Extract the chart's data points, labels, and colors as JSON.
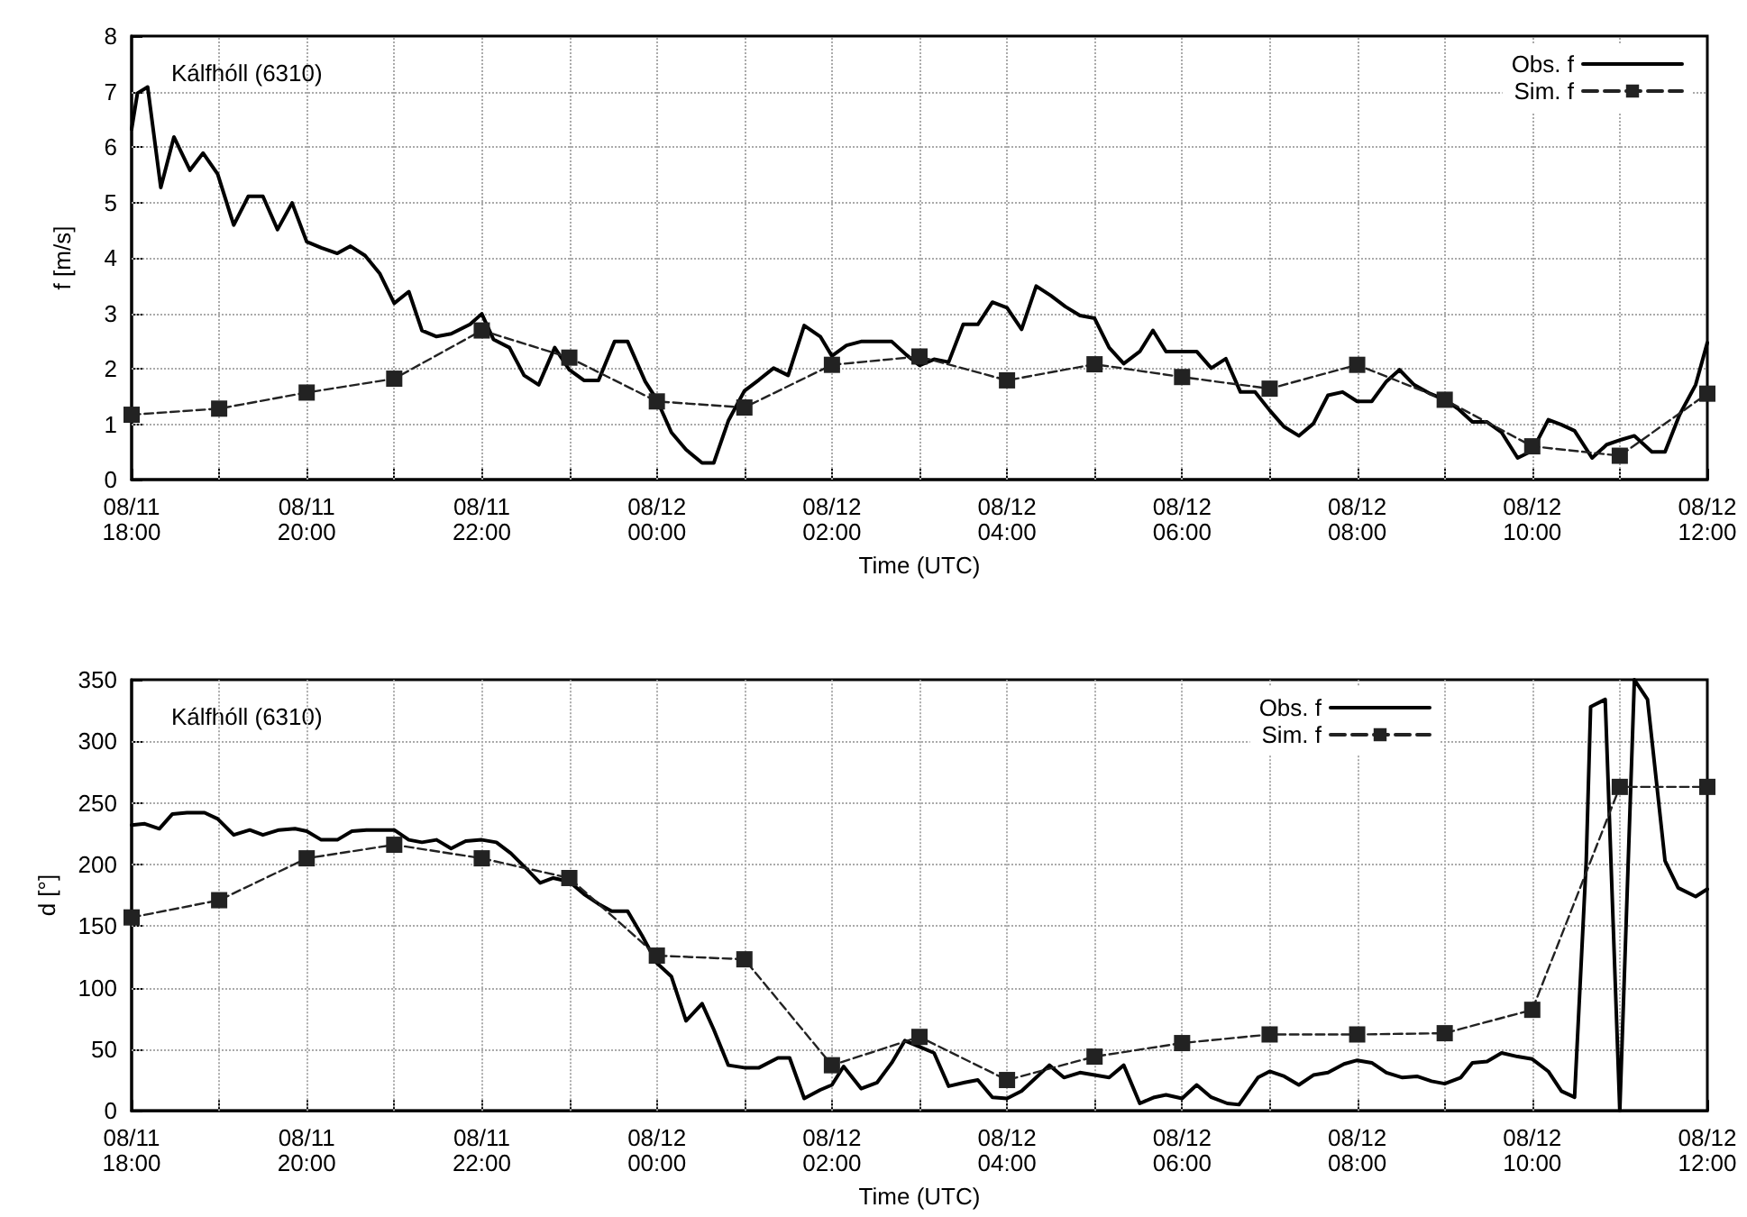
{
  "chart_data": [
    {
      "type": "line",
      "xlabel": "Time (UTC)",
      "ylabel": "f [m/s]",
      "annotations": [
        "Kálfhóll (6310)"
      ],
      "xlim": [
        "--08-11T18:00",
        "--08-12T12:00"
      ],
      "ylim": [
        0,
        8
      ],
      "xticks": [
        {
          "value": "--08-11T18:00",
          "label": "08/11\n18:00"
        },
        {
          "value": "--08-11T19:00",
          "label": null
        },
        {
          "value": "--08-11T20:00",
          "label": "08/11\n20:00"
        },
        {
          "value": "--08-11T21:00",
          "label": null
        },
        {
          "value": "--08-11T22:00",
          "label": "08/11\n22:00"
        },
        {
          "value": "--08-11T23:00",
          "label": null
        },
        {
          "value": "--08-12T00:00",
          "label": "08/12\n00:00"
        },
        {
          "value": "--08-12T01:00",
          "label": null
        },
        {
          "value": "--08-12T02:00",
          "label": "08/12\n02:00"
        },
        {
          "value": "--08-12T03:00",
          "label": null
        },
        {
          "value": "--08-12T04:00",
          "label": "08/12\n04:00"
        },
        {
          "value": "--08-12T05:00",
          "label": null
        },
        {
          "value": "--08-12T06:00",
          "label": "08/12\n06:00"
        },
        {
          "value": "--08-12T07:00",
          "label": null
        },
        {
          "value": "--08-12T08:00",
          "label": "08/12\n08:00"
        },
        {
          "value": "--08-12T09:00",
          "label": null
        },
        {
          "value": "--08-12T10:00",
          "label": "08/12\n10:00"
        },
        {
          "value": "--08-12T11:00",
          "label": null
        },
        {
          "value": "--08-12T12:00",
          "label": "08/12\n12:00"
        }
      ],
      "yticks": [
        0,
        1,
        2,
        3,
        4,
        5,
        6,
        7,
        8
      ],
      "grid": true,
      "legend": "top right",
      "series": [
        {
          "name": "Obs. f",
          "color": "#000000",
          "marker": "none",
          "line_style": "solid",
          "x": [
            "--08-11T18:00",
            "--08-11T18:04",
            "--08-11T18:11",
            "--08-11T18:20",
            "--08-11T18:29",
            "--08-11T18:40",
            "--08-11T18:49",
            "--08-11T18:59",
            "--08-11T19:10",
            "--08-11T19:20",
            "--08-11T19:30",
            "--08-11T19:40",
            "--08-11T19:50",
            "--08-11T20:00",
            "--08-11T20:10",
            "--08-11T20:21",
            "--08-11T20:30",
            "--08-11T20:40",
            "--08-11T20:50",
            "--08-11T21:00",
            "--08-11T21:10",
            "--08-11T21:19",
            "--08-11T21:29",
            "--08-11T21:39",
            "--08-11T21:52",
            "--08-11T22:00",
            "--08-11T22:08",
            "--08-11T22:19",
            "--08-11T22:29",
            "--08-11T22:39",
            "--08-11T22:50",
            "--08-11T23:00",
            "--08-11T23:10",
            "--08-11T23:20",
            "--08-11T23:31",
            "--08-11T23:40",
            "--08-11T23:52",
            "--08-12T00:00",
            "--08-12T00:10",
            "--08-12T00:20",
            "--08-12T00:31",
            "--08-12T00:39",
            "--08-12T00:49",
            "--08-12T01:00",
            "--08-12T01:10",
            "--08-12T01:20",
            "--08-12T01:30",
            "--08-12T01:41",
            "--08-12T01:52",
            "--08-12T02:00",
            "--08-12T02:10",
            "--08-12T02:20",
            "--08-12T02:31",
            "--08-12T02:41",
            "--08-12T02:51",
            "--08-12T03:00",
            "--08-12T03:10",
            "--08-12T03:20",
            "--08-12T03:30",
            "--08-12T03:40",
            "--08-12T03:50",
            "--08-12T04:00",
            "--08-12T04:10",
            "--08-12T04:20",
            "--08-12T04:30",
            "--08-12T04:40",
            "--08-12T04:50",
            "--08-12T05:00",
            "--08-12T05:10",
            "--08-12T05:20",
            "--08-12T05:31",
            "--08-12T05:40",
            "--08-12T05:49",
            "--08-12T06:00",
            "--08-12T06:10",
            "--08-12T06:20",
            "--08-12T06:30",
            "--08-12T06:40",
            "--08-12T06:50",
            "--08-12T07:00",
            "--08-12T07:10",
            "--08-12T07:20",
            "--08-12T07:30",
            "--08-12T07:40",
            "--08-12T07:50",
            "--08-12T08:00",
            "--08-12T08:10",
            "--08-12T08:20",
            "--08-12T08:29",
            "--08-12T08:39",
            "--08-12T08:50",
            "--08-12T09:00",
            "--08-12T09:09",
            "--08-12T09:19",
            "--08-12T09:29",
            "--08-12T09:39",
            "--08-12T09:50",
            "--08-12T10:00",
            "--08-12T10:11",
            "--08-12T10:20",
            "--08-12T10:29",
            "--08-12T10:41",
            "--08-12T10:51",
            "--08-12T11:01",
            "--08-12T11:10",
            "--08-12T11:22",
            "--08-12T11:31",
            "--08-12T11:41",
            "--08-12T11:52",
            "--08-12T12:00"
          ],
          "values": [
            6.32,
            6.97,
            7.08,
            5.27,
            6.18,
            5.58,
            5.89,
            5.51,
            4.59,
            5.11,
            5.11,
            4.51,
            4.99,
            4.29,
            4.18,
            4.08,
            4.21,
            4.04,
            3.72,
            3.18,
            3.39,
            2.69,
            2.58,
            2.63,
            2.8,
            2.99,
            2.53,
            2.38,
            1.88,
            1.71,
            2.38,
            1.98,
            1.79,
            1.79,
            2.49,
            2.49,
            1.77,
            1.44,
            0.85,
            0.54,
            0.3,
            0.3,
            1.06,
            1.6,
            1.8,
            2.01,
            1.88,
            2.78,
            2.58,
            2.23,
            2.42,
            2.49,
            2.49,
            2.49,
            2.25,
            2.06,
            2.17,
            2.12,
            2.8,
            2.8,
            3.2,
            3.1,
            2.71,
            3.49,
            3.32,
            3.12,
            2.96,
            2.91,
            2.38,
            2.09,
            2.31,
            2.69,
            2.31,
            2.31,
            2.31,
            2.01,
            2.18,
            1.58,
            1.58,
            1.25,
            0.95,
            0.79,
            1.01,
            1.52,
            1.58,
            1.41,
            1.41,
            1.77,
            1.98,
            1.71,
            1.55,
            1.44,
            1.28,
            1.04,
            1.04,
            0.85,
            0.39,
            0.52,
            1.08,
            0.99,
            0.88,
            0.39,
            0.63,
            0.72,
            0.79,
            0.5,
            0.5,
            1.17,
            1.71,
            2.47
          ]
        },
        {
          "name": "Sim. f",
          "color": "#222222",
          "marker": "square",
          "line_style": "dashed",
          "x": [
            "--08-11T18:00",
            "--08-11T19:00",
            "--08-11T20:00",
            "--08-11T21:00",
            "--08-11T22:00",
            "--08-11T23:00",
            "--08-12T00:00",
            "--08-12T01:00",
            "--08-12T02:00",
            "--08-12T03:00",
            "--08-12T04:00",
            "--08-12T05:00",
            "--08-12T06:00",
            "--08-12T07:00",
            "--08-12T08:00",
            "--08-12T09:00",
            "--08-12T10:00",
            "--08-12T11:00",
            "--08-12T12:00"
          ],
          "values": [
            1.17,
            1.28,
            1.57,
            1.82,
            2.69,
            2.2,
            1.41,
            1.3,
            2.07,
            2.22,
            1.79,
            2.08,
            1.85,
            1.64,
            2.07,
            1.44,
            0.6,
            0.43,
            1.55
          ]
        }
      ]
    },
    {
      "type": "line",
      "xlabel": "Time (UTC)",
      "ylabel": "d [°]",
      "annotations": [
        "Kálfhóll (6310)"
      ],
      "xlim": [
        "--08-11T18:00",
        "--08-12T12:00"
      ],
      "ylim": [
        0,
        350
      ],
      "xticks": [
        {
          "value": "--08-11T18:00",
          "label": "08/11\n18:00"
        },
        {
          "value": "--08-11T19:00",
          "label": null
        },
        {
          "value": "--08-11T20:00",
          "label": "08/11\n20:00"
        },
        {
          "value": "--08-11T21:00",
          "label": null
        },
        {
          "value": "--08-11T22:00",
          "label": "08/11\n22:00"
        },
        {
          "value": "--08-11T23:00",
          "label": null
        },
        {
          "value": "--08-12T00:00",
          "label": "08/12\n00:00"
        },
        {
          "value": "--08-12T01:00",
          "label": null
        },
        {
          "value": "--08-12T02:00",
          "label": "08/12\n02:00"
        },
        {
          "value": "--08-12T03:00",
          "label": null
        },
        {
          "value": "--08-12T04:00",
          "label": "08/12\n04:00"
        },
        {
          "value": "--08-12T05:00",
          "label": null
        },
        {
          "value": "--08-12T06:00",
          "label": "08/12\n06:00"
        },
        {
          "value": "--08-12T07:00",
          "label": null
        },
        {
          "value": "--08-12T08:00",
          "label": "08/12\n08:00"
        },
        {
          "value": "--08-12T09:00",
          "label": null
        },
        {
          "value": "--08-12T10:00",
          "label": "08/12\n10:00"
        },
        {
          "value": "--08-12T11:00",
          "label": null
        },
        {
          "value": "--08-12T12:00",
          "label": "08/12\n12:00"
        }
      ],
      "yticks": [
        0,
        50,
        100,
        150,
        200,
        250,
        300,
        350
      ],
      "grid": true,
      "legend": "top right",
      "series": [
        {
          "name": "Obs. f",
          "color": "#000000",
          "marker": "none",
          "line_style": "solid",
          "x": [
            "--08-11T18:00",
            "--08-11T18:09",
            "--08-11T18:19",
            "--08-11T18:28",
            "--08-11T18:38",
            "--08-11T18:50",
            "--08-11T18:59",
            "--08-11T19:10",
            "--08-11T19:21",
            "--08-11T19:30",
            "--08-11T19:41",
            "--08-11T19:52",
            "--08-11T20:00",
            "--08-11T20:10",
            "--08-11T20:21",
            "--08-11T20:31",
            "--08-11T20:41",
            "--08-11T21:00",
            "--08-11T21:10",
            "--08-11T21:19",
            "--08-11T21:29",
            "--08-11T21:39",
            "--08-11T21:49",
            "--08-11T22:00",
            "--08-11T22:10",
            "--08-11T22:20",
            "--08-11T22:31",
            "--08-11T22:40",
            "--08-11T22:49",
            "--08-11T23:00",
            "--08-11T23:10",
            "--08-11T23:20",
            "--08-11T23:29",
            "--08-11T23:40",
            "--08-11T23:50",
            "--08-12T00:00",
            "--08-12T00:10",
            "--08-12T00:20",
            "--08-12T00:31",
            "--08-12T00:39",
            "--08-12T00:49",
            "--08-12T01:00",
            "--08-12T01:10",
            "--08-12T01:23",
            "--08-12T01:31",
            "--08-12T01:41",
            "--08-12T01:52",
            "--08-12T02:00",
            "--08-12T02:08",
            "--08-12T02:20",
            "--08-12T02:31",
            "--08-12T02:41",
            "--08-12T02:50",
            "--08-12T03:00",
            "--08-12T03:10",
            "--08-12T03:20",
            "--08-12T03:31",
            "--08-12T03:40",
            "--08-12T03:50",
            "--08-12T04:00",
            "--08-12T04:10",
            "--08-12T04:20",
            "--08-12T04:29",
            "--08-12T04:39",
            "--08-12T04:50",
            "--08-12T05:00",
            "--08-12T05:10",
            "--08-12T05:20",
            "--08-12T05:31",
            "--08-12T05:41",
            "--08-12T05:49",
            "--08-12T06:00",
            "--08-12T06:10",
            "--08-12T06:20",
            "--08-12T06:31",
            "--08-12T06:39",
            "--08-12T06:52",
            "--08-12T07:00",
            "--08-12T07:10",
            "--08-12T07:20",
            "--08-12T07:30",
            "--08-12T07:40",
            "--08-12T07:51",
            "--08-12T08:00",
            "--08-12T08:10",
            "--08-12T08:20",
            "--08-12T08:31",
            "--08-12T08:41",
            "--08-12T08:51",
            "--08-12T09:00",
            "--08-12T09:11",
            "--08-12T09:19",
            "--08-12T09:29",
            "--08-12T09:39",
            "--08-12T09:50",
            "--08-12T10:00",
            "--08-12T10:11",
            "--08-12T10:20",
            "--08-12T10:29",
            "--08-12T10:37",
            "--08-12T10:40",
            "--08-12T10:50",
            "--08-12T11:00",
            "--08-12T11:10",
            "--08-12T11:19",
            "--08-12T11:31",
            "--08-12T11:40",
            "--08-12T11:52",
            "--08-12T12:00"
          ],
          "values": [
            232,
            233,
            229,
            241,
            242,
            242,
            237,
            224,
            228,
            224,
            228,
            229,
            227,
            220,
            220,
            227,
            228,
            228,
            220,
            218,
            220,
            213,
            219,
            220,
            218,
            209,
            196,
            185,
            189,
            186,
            176,
            168,
            162,
            162,
            142,
            120,
            109,
            73,
            87,
            66,
            37,
            35,
            35,
            43,
            43,
            10,
            17,
            21,
            36,
            18,
            23,
            39,
            57,
            52,
            47,
            20,
            23,
            25,
            11,
            10,
            16,
            27,
            37,
            27,
            31,
            29,
            27,
            37,
            6,
            11,
            13,
            10,
            21,
            11,
            6,
            5,
            27,
            32,
            28,
            21,
            29,
            31,
            38,
            41,
            39,
            31,
            27,
            28,
            24,
            22,
            27,
            39,
            40,
            47,
            44,
            42,
            32,
            16,
            11,
            203,
            328,
            334,
            0,
            350,
            334,
            203,
            181,
            174,
            180
          ]
        },
        {
          "name": "Sim. f",
          "color": "#222222",
          "marker": "square",
          "line_style": "dashed",
          "x": [
            "--08-11T18:00",
            "--08-11T19:00",
            "--08-11T20:00",
            "--08-11T21:00",
            "--08-11T22:00",
            "--08-11T23:00",
            "--08-12T00:00",
            "--08-12T01:00",
            "--08-12T02:00",
            "--08-12T03:00",
            "--08-12T04:00",
            "--08-12T05:00",
            "--08-12T06:00",
            "--08-12T07:00",
            "--08-12T08:00",
            "--08-12T09:00",
            "--08-12T10:00",
            "--08-12T11:00",
            "--08-12T12:00"
          ],
          "values": [
            157,
            171,
            205,
            216,
            205,
            189,
            126,
            123,
            37,
            60,
            25,
            44,
            55,
            62,
            62,
            63,
            82,
            263,
            263
          ]
        }
      ]
    }
  ]
}
